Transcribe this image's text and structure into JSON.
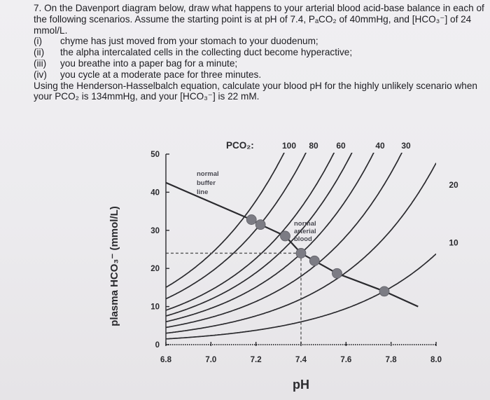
{
  "question": {
    "intro": "7. On the Davenport diagram below, draw what happens to your arterial blood acid-base balance in each of the following scenarios. Assume the starting point is at pH of 7.4, PₐCO₂ of 40mmHg, and [HCO₃⁻] of 24 mmol/L.",
    "items": [
      {
        "num": "(i)",
        "text": "chyme has just moved from your stomach to your duodenum;"
      },
      {
        "num": "(ii)",
        "text": "the alpha intercalated cells in the collecting duct become hyperactive;"
      },
      {
        "num": "(iii)",
        "text": "you breathe into a paper bag for a minute;"
      },
      {
        "num": "(iv)",
        "text": "you cycle at a moderate pace for three minutes."
      }
    ],
    "outro": "Using the Henderson-Hasselbalch equation, calculate your blood pH for the highly unlikely scenario when your PCO₂ is 134mmHg, and your [HCO₃⁻] is 22 mM."
  },
  "chart_data": {
    "type": "line",
    "xlabel": "pH",
    "ylabel": "plasma HCO₃⁻ (mmol/L)",
    "xlim": [
      6.8,
      8.0
    ],
    "ylim": [
      0,
      50
    ],
    "xticks": [
      "6.8",
      "7.0",
      "7.2",
      "7.4",
      "7.6",
      "7.8",
      "8.0"
    ],
    "yticks": [
      "0",
      "10",
      "20",
      "30",
      "40",
      "50"
    ],
    "pco2_header": "PCO₂:",
    "isopleths": [
      {
        "label": "100",
        "pco2": 100
      },
      {
        "label": "80",
        "pco2": 80
      },
      {
        "label": "60",
        "pco2": 60
      },
      {
        "label": "",
        "pco2": 50
      },
      {
        "label": "40",
        "pco2": 40
      },
      {
        "label": "30",
        "pco2": 30
      },
      {
        "label": "20",
        "pco2": 20
      },
      {
        "label": "10",
        "pco2": 10
      }
    ],
    "buffer_line": {
      "label": "normal buffer line",
      "label_lines": [
        "normal",
        "buffer",
        "line"
      ],
      "points": [
        {
          "x": 7.18,
          "y": 32.8
        },
        {
          "x": 7.22,
          "y": 31.5
        },
        {
          "x": 7.33,
          "y": 28.5
        },
        {
          "x": 7.4,
          "y": 24.0
        },
        {
          "x": 7.46,
          "y": 22.0
        },
        {
          "x": 7.56,
          "y": 18.7
        },
        {
          "x": 7.77,
          "y": 14.0
        }
      ]
    },
    "normal_point": {
      "x": 7.4,
      "y": 24,
      "label": "normal arterial blood",
      "label_lines": [
        "normal",
        "arterial",
        "blood"
      ]
    },
    "colors": {
      "line": "#2a2a2e",
      "point": "#7c7c84",
      "label": "#4a4a52"
    }
  }
}
